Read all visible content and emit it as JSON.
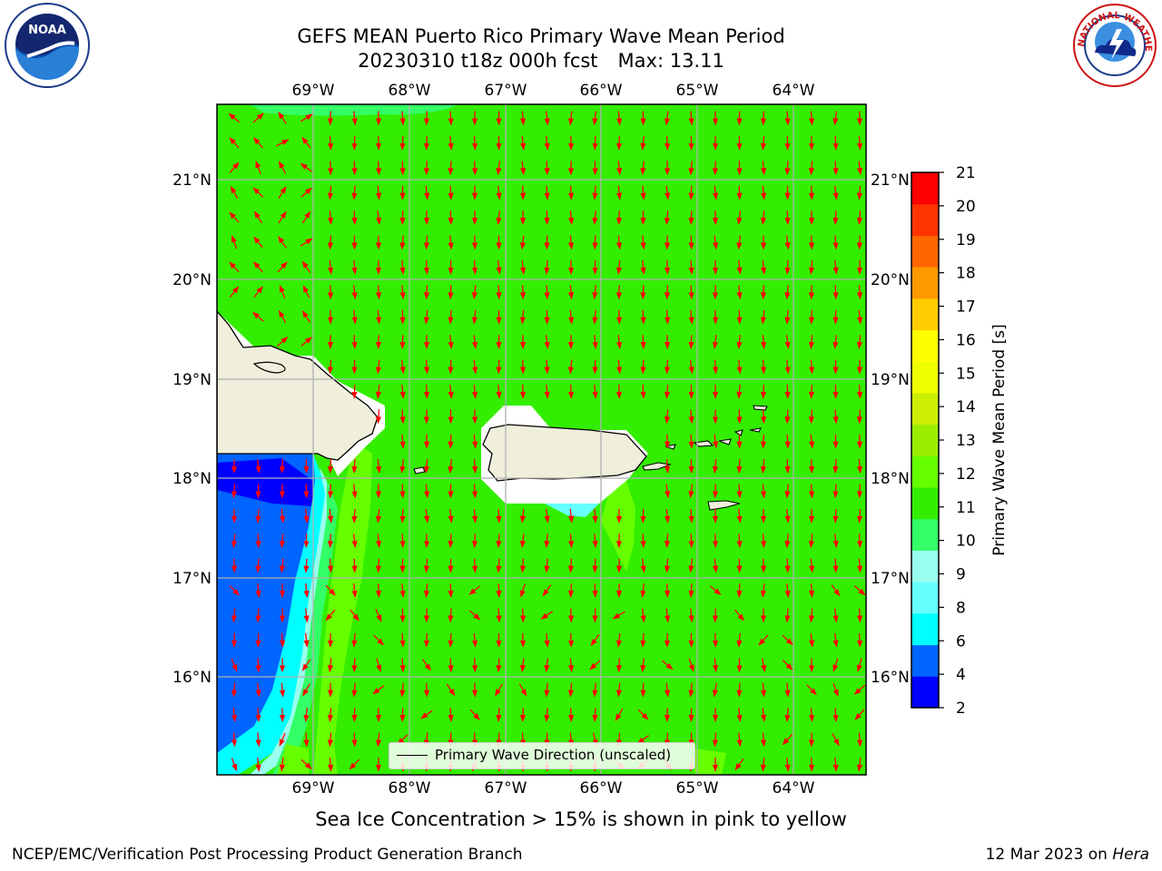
{
  "title": {
    "line1": "GEFS MEAN Puerto Rico Primary Wave Mean Period",
    "run": "20230310 t18z 000h fcst",
    "max": "Max: 13.11"
  },
  "map": {
    "lon_labels": [
      "69°W",
      "68°W",
      "67°W",
      "66°W",
      "65°W",
      "64°W"
    ],
    "lat_labels": [
      "21°N",
      "20°N",
      "19°N",
      "18°N",
      "17°N",
      "16°N"
    ],
    "lon_range": [
      -70.0,
      -63.25
    ],
    "lat_range": [
      15.0,
      21.75
    ],
    "land_color": "#efefdc",
    "ocean_base_color": "#33ee00",
    "arrow_color": "#ff0000",
    "legend_label": "Primary Wave Direction (unscaled)"
  },
  "colorbar": {
    "label": "Primary Wave Mean Period [s]",
    "ticks": [
      "2",
      "4",
      "6",
      "8",
      "9",
      "10",
      "11",
      "12",
      "13",
      "14",
      "15",
      "16",
      "17",
      "18",
      "19",
      "20",
      "21"
    ],
    "colors": [
      "#0000ff",
      "#0064ff",
      "#00ffff",
      "#66ffff",
      "#99ffee",
      "#33ff66",
      "#33ee00",
      "#66ff00",
      "#99ee00",
      "#ccee00",
      "#eeff00",
      "#ffff00",
      "#ffcc00",
      "#ff9900",
      "#ff6600",
      "#ff3300",
      "#ff0000"
    ]
  },
  "caption": "Sea Ice Concentration > 15% is shown in pink to yellow",
  "footer": {
    "left": "NCEP/EMC/Verification Post Processing Product Generation Branch",
    "date": "12 Mar 2023 on ",
    "host": "Hera"
  },
  "logos": {
    "noaa": "NOAA",
    "nws": "NATIONAL WEATHER SERVICE"
  }
}
